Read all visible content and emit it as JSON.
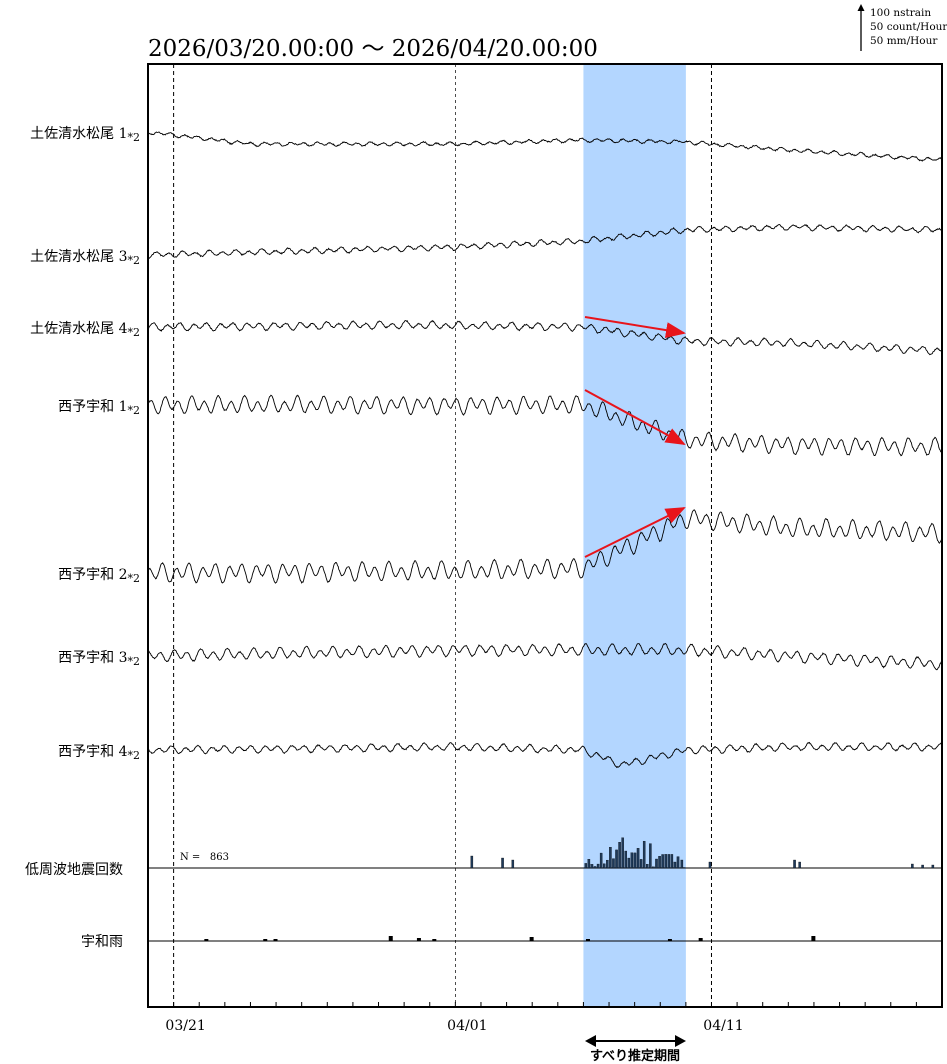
{
  "header": {
    "period": "2026/03/20.00:00 〜 2026/04/20.00:00"
  },
  "scale_legend": {
    "lines": [
      "100 nstrain",
      "50 count/Hour",
      "50 mm/Hour"
    ]
  },
  "slip_label": "すべり推定期間",
  "eq_count_label": "N =   863",
  "colors": {
    "highlight": "#B3D6FF",
    "arrow": "#E8141B",
    "trace": "#000000",
    "bars": "#1F3A5A"
  },
  "chart_data": {
    "type": "line",
    "x_range": [
      "2026/03/20.00:00",
      "2026/04/20.00:00"
    ],
    "x_ticks": [
      "03/21",
      "04/01",
      "04/11"
    ],
    "highlight_period": {
      "label": "すべり推定期間",
      "start": "2026-04-06",
      "end": "2026-04-10"
    },
    "series": [
      {
        "name": "土佐清水松尾 1",
        "suffix": "*2",
        "amp": 2,
        "trend": [
          [
            0,
            0
          ],
          [
            4,
            -12
          ],
          [
            12,
            -12
          ],
          [
            17,
            -8
          ],
          [
            21,
            -10
          ],
          [
            25,
            -18
          ],
          [
            31,
            -28
          ]
        ]
      },
      {
        "name": "土佐清水松尾 3",
        "suffix": "*2",
        "amp": 3,
        "trend": [
          [
            0,
            0
          ],
          [
            12,
            8
          ],
          [
            17,
            14
          ],
          [
            21,
            25
          ],
          [
            25,
            28
          ],
          [
            31,
            25
          ]
        ]
      },
      {
        "name": "土佐清水松尾 4",
        "suffix": "*2",
        "amp": 4,
        "trend": [
          [
            0,
            0
          ],
          [
            10,
            2
          ],
          [
            17,
            0
          ],
          [
            21,
            -14
          ],
          [
            25,
            -16
          ],
          [
            31,
            -24
          ]
        ]
      },
      {
        "name": "西予宇和 1",
        "suffix": "*2",
        "amp": 9,
        "trend": [
          [
            0,
            0
          ],
          [
            17,
            0
          ],
          [
            21,
            -35
          ],
          [
            25,
            -40
          ],
          [
            31,
            -42
          ]
        ]
      },
      {
        "name": "西予宇和 2",
        "suffix": "*2",
        "amp": 10,
        "trend": [
          [
            0,
            0
          ],
          [
            12,
            2
          ],
          [
            17,
            5
          ],
          [
            21,
            55
          ],
          [
            25,
            45
          ],
          [
            31,
            40
          ]
        ]
      },
      {
        "name": "西予宇和 3",
        "suffix": "*2",
        "amp": 6,
        "trend": [
          [
            0,
            0
          ],
          [
            12,
            6
          ],
          [
            17,
            6
          ],
          [
            21,
            6
          ],
          [
            25,
            0
          ],
          [
            31,
            -8
          ]
        ]
      },
      {
        "name": "西予宇和 4",
        "suffix": "*2",
        "amp": 4,
        "trend": [
          [
            0,
            0
          ],
          [
            12,
            3
          ],
          [
            17,
            0
          ],
          [
            18.5,
            -15
          ],
          [
            21,
            0
          ],
          [
            25,
            3
          ],
          [
            31,
            3
          ]
        ]
      }
    ],
    "histograms": [
      {
        "name": "低周波地震回数",
        "note": "N =   863"
      },
      {
        "name": "宇和雨"
      }
    ]
  }
}
